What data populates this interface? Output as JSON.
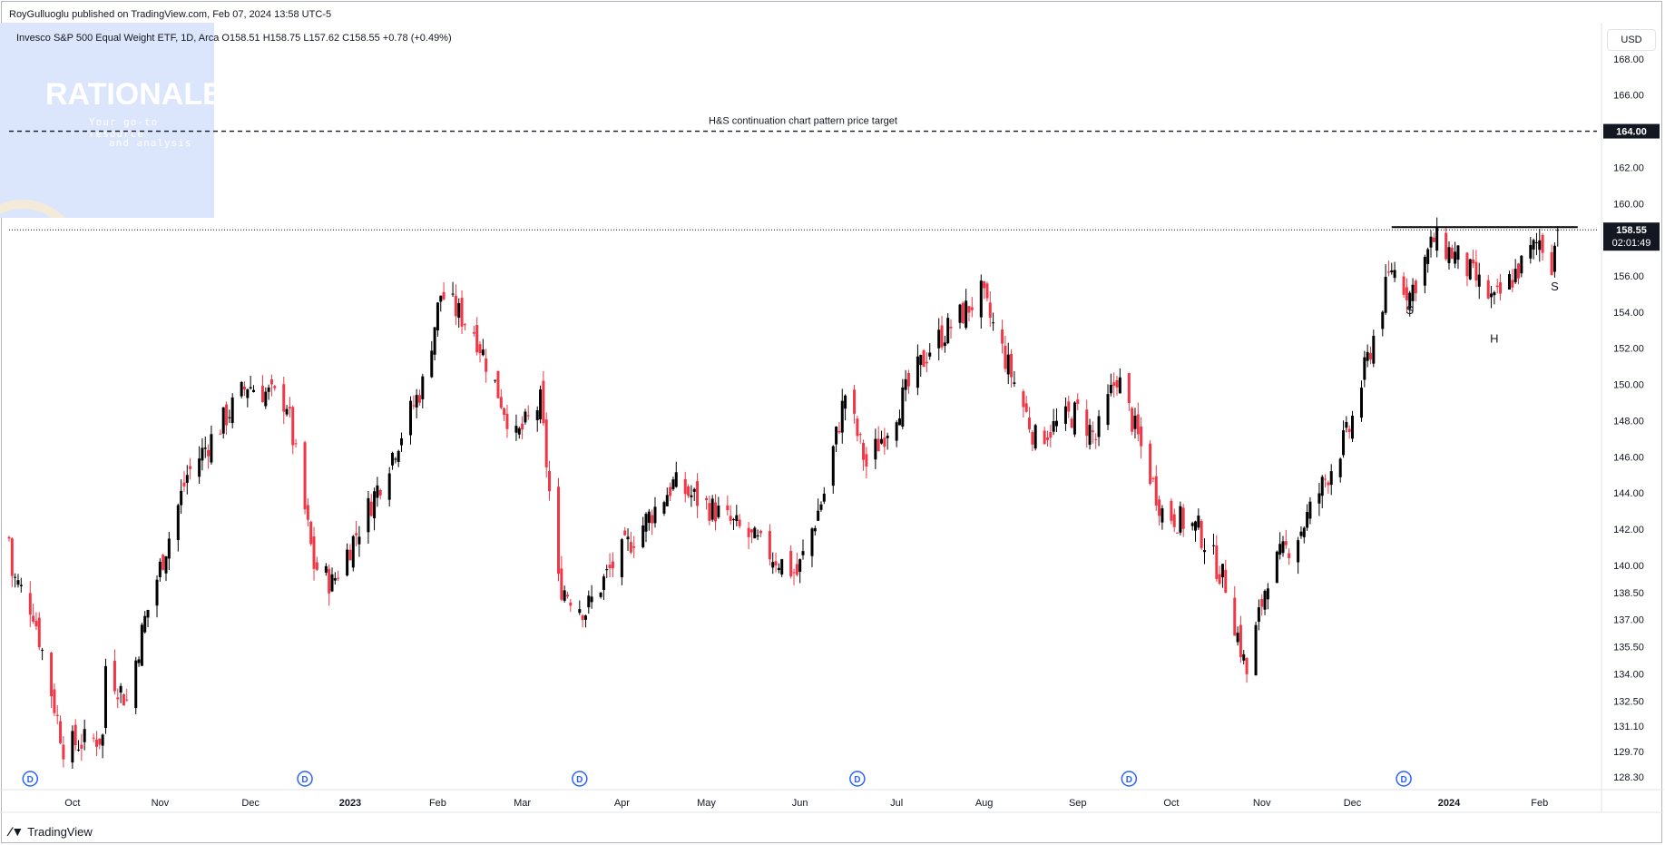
{
  "header": {
    "published_line": "RoyGulluoglu published on TradingView.com, Feb 07, 2024 13:58 UTC-5",
    "legend_line": "Invesco S&P 500 Equal Weight ETF, 1D, Arca  O158.51  H158.75  L157.62  C158.55  +0.78 (+0.49%)",
    "currency_button": "USD"
  },
  "watermark": {
    "title": "RATIONALE",
    "line1": "Your go-to resource",
    "line2": "and analysis"
  },
  "footer": {
    "brand": "TradingView",
    "brand_icon": "tradingview-logo-icon"
  },
  "colors": {
    "up": "#000000",
    "down": "#f23645",
    "accent": "#2962ff",
    "axis_text": "#131722",
    "grid": "#ffffff"
  },
  "chart_data": {
    "type": "candlestick",
    "title": "Invesco S&P 500 Equal Weight ETF, 1D, Arca",
    "ylim": [
      127.6,
      170
    ],
    "y_ticks": [
      128.3,
      129.7,
      131.1,
      132.5,
      134.0,
      135.5,
      137.0,
      138.5,
      140.0,
      142.0,
      144.0,
      146.0,
      148.0,
      150.0,
      152.0,
      154.0,
      156.0,
      160.0,
      162.0,
      166.0,
      168.0
    ],
    "y_tick_labels": [
      "128.30",
      "129.70",
      "131.10",
      "132.50",
      "134.00",
      "135.50",
      "137.00",
      "138.50",
      "140.00",
      "142.00",
      "144.00",
      "146.00",
      "148.00",
      "150.00",
      "152.00",
      "154.00",
      "156.00",
      "160.00",
      "162.00",
      "166.00",
      "168.00"
    ],
    "x_range": [
      "2022-09-12",
      "2024-02-20"
    ],
    "x_ticks": [
      {
        "date": "2022-10-03",
        "label": "Oct",
        "bold": false
      },
      {
        "date": "2022-11-01",
        "label": "Nov",
        "bold": false
      },
      {
        "date": "2022-12-01",
        "label": "Dec",
        "bold": false
      },
      {
        "date": "2023-01-03",
        "label": "2023",
        "bold": true
      },
      {
        "date": "2023-02-01",
        "label": "Feb",
        "bold": false
      },
      {
        "date": "2023-03-01",
        "label": "Mar",
        "bold": false
      },
      {
        "date": "2023-04-03",
        "label": "Apr",
        "bold": false
      },
      {
        "date": "2023-05-01",
        "label": "May",
        "bold": false
      },
      {
        "date": "2023-06-01",
        "label": "Jun",
        "bold": false
      },
      {
        "date": "2023-07-03",
        "label": "Jul",
        "bold": false
      },
      {
        "date": "2023-08-01",
        "label": "Aug",
        "bold": false
      },
      {
        "date": "2023-09-01",
        "label": "Sep",
        "bold": false
      },
      {
        "date": "2023-10-02",
        "label": "Oct",
        "bold": false
      },
      {
        "date": "2023-11-01",
        "label": "Nov",
        "bold": false
      },
      {
        "date": "2023-12-01",
        "label": "Dec",
        "bold": false
      },
      {
        "date": "2024-01-02",
        "label": "2024",
        "bold": true
      },
      {
        "date": "2024-02-01",
        "label": "Feb",
        "bold": false
      }
    ],
    "price_path": [
      [
        "2022-09-12",
        141.5
      ],
      [
        "2022-09-13",
        139.5
      ],
      [
        "2022-09-20",
        137.5
      ],
      [
        "2022-09-30",
        130.0
      ],
      [
        "2022-10-13",
        130.5
      ],
      [
        "2022-10-14",
        134.5
      ],
      [
        "2022-10-21",
        132.5
      ],
      [
        "2022-10-27",
        137.0
      ],
      [
        "2022-11-10",
        145.0
      ],
      [
        "2022-11-30",
        150.0
      ],
      [
        "2022-12-13",
        149.0
      ],
      [
        "2022-12-22",
        140.0
      ],
      [
        "2022-12-28",
        139.0
      ],
      [
        "2023-01-10",
        143.5
      ],
      [
        "2023-01-27",
        150.0
      ],
      [
        "2023-02-02",
        155.0
      ],
      [
        "2023-02-13",
        153.0
      ],
      [
        "2023-02-27",
        147.0
      ],
      [
        "2023-03-07",
        149.0
      ],
      [
        "2023-03-13",
        139.0
      ],
      [
        "2023-03-22",
        137.5
      ],
      [
        "2023-03-31",
        140.0
      ],
      [
        "2023-04-20",
        144.5
      ],
      [
        "2023-05-04",
        143.0
      ],
      [
        "2023-05-31",
        139.5
      ],
      [
        "2023-06-09",
        144.0
      ],
      [
        "2023-06-16",
        149.5
      ],
      [
        "2023-06-23",
        145.5
      ],
      [
        "2023-07-14",
        152.0
      ],
      [
        "2023-07-31",
        155.0
      ],
      [
        "2023-08-18",
        147.0
      ],
      [
        "2023-09-01",
        148.5
      ],
      [
        "2023-09-07",
        147.0
      ],
      [
        "2023-09-14",
        150.5
      ],
      [
        "2023-09-29",
        143.0
      ],
      [
        "2023-10-11",
        142.0
      ],
      [
        "2023-10-20",
        139.0
      ],
      [
        "2023-10-27",
        134.0
      ],
      [
        "2023-11-03",
        139.5
      ],
      [
        "2023-11-14",
        142.0
      ],
      [
        "2023-11-30",
        147.5
      ],
      [
        "2023-12-14",
        156.5
      ],
      [
        "2023-12-20",
        155.0
      ],
      [
        "2023-12-28",
        158.0
      ],
      [
        "2024-01-05",
        157.0
      ],
      [
        "2024-01-17",
        154.5
      ],
      [
        "2024-02-01",
        158.0
      ],
      [
        "2024-02-05",
        156.8
      ],
      [
        "2024-02-07",
        158.55
      ]
    ],
    "last_price": 158.55,
    "last_price_label": "158.55",
    "countdown_label": "02:01:49",
    "target": {
      "price": 164.0,
      "label": "164.00",
      "text": "H&S continuation chart pattern price target"
    },
    "neckline": {
      "price": 158.7,
      "from": "2023-12-14",
      "to": "2024-02-07"
    },
    "annotations": [
      {
        "text": "S",
        "date": "2023-12-20",
        "price": 153.9
      },
      {
        "text": "H",
        "date": "2024-01-17",
        "price": 152.3
      },
      {
        "text": "S",
        "date": "2024-02-06",
        "price": 155.2
      }
    ],
    "dividends": [
      {
        "label": "D",
        "date": "2022-09-19"
      },
      {
        "label": "D",
        "date": "2022-12-19"
      },
      {
        "label": "D",
        "date": "2023-03-20"
      },
      {
        "label": "D",
        "date": "2023-06-20"
      },
      {
        "label": "D",
        "date": "2023-09-18"
      },
      {
        "label": "D",
        "date": "2023-12-18"
      }
    ]
  }
}
